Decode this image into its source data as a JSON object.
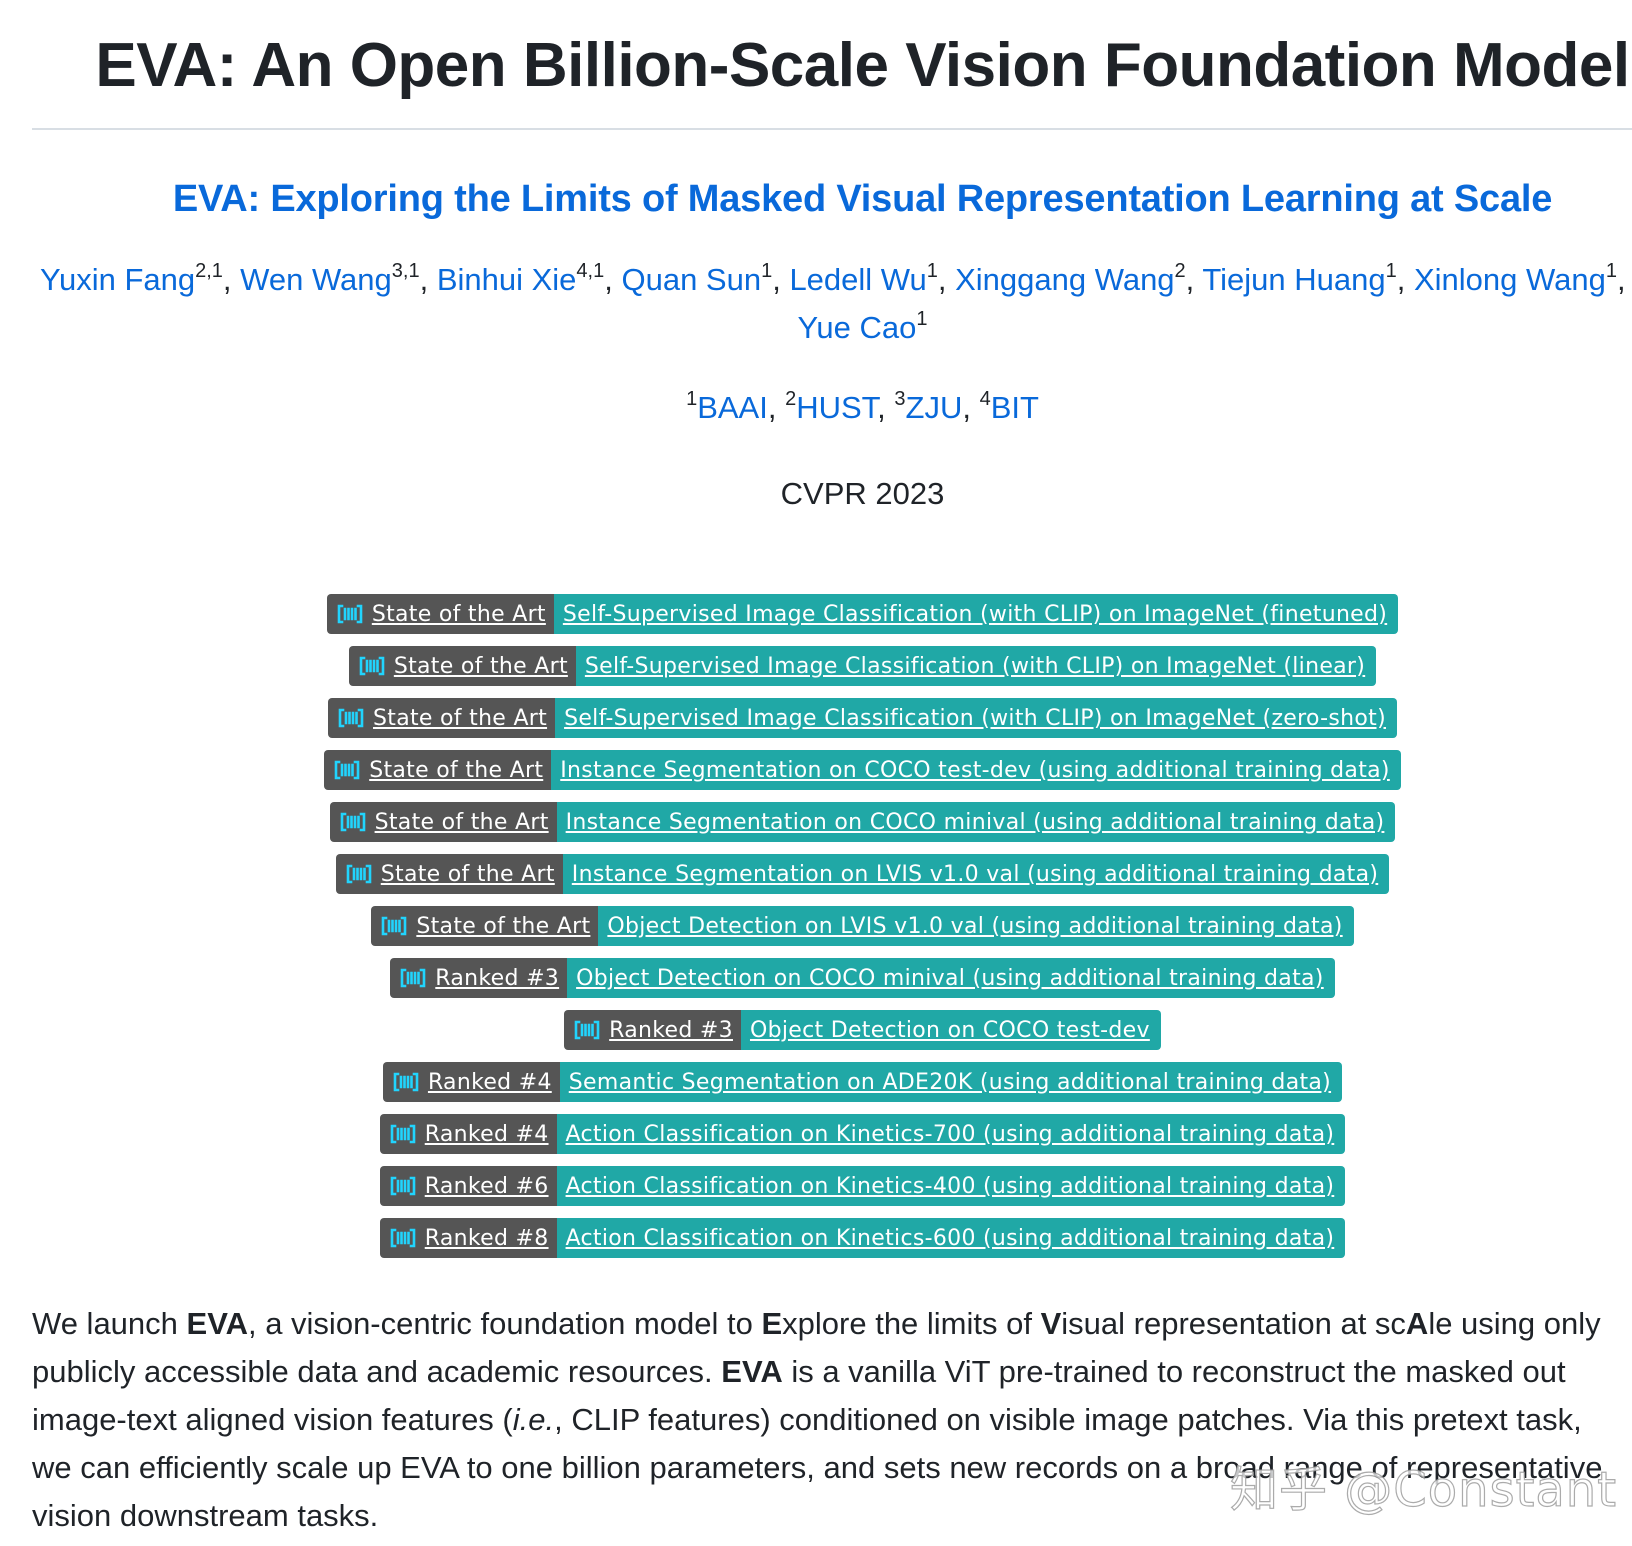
{
  "page": {
    "title": "EVA: An Open Billion-Scale Vision Foundation Model"
  },
  "paper": {
    "title": "EVA: Exploring the Limits of Masked Visual Representation Learning at Scale",
    "authors": [
      {
        "name": "Yuxin Fang",
        "sup": "2,1",
        "sep": ", "
      },
      {
        "name": "Wen Wang",
        "sup": "3,1",
        "sep": ", "
      },
      {
        "name": "Binhui Xie",
        "sup": "4,1",
        "sep": ", "
      },
      {
        "name": "Quan Sun",
        "sup": "1",
        "sep": ", "
      },
      {
        "name": "Ledell Wu",
        "sup": "1",
        "sep": ", "
      },
      {
        "name": "Xinggang Wang",
        "sup": "2",
        "sep": ", "
      },
      {
        "name": "Tiejun Huang",
        "sup": "1",
        "sep": ", "
      },
      {
        "name": "Xinlong Wang",
        "sup": "1",
        "sep": ", "
      }
    ],
    "last_author": {
      "name": "Yue Cao",
      "sup": "1"
    },
    "affiliations": [
      {
        "sup": "1",
        "name": "BAAI",
        "sep": ", "
      },
      {
        "sup": "2",
        "name": "HUST",
        "sep": ", "
      },
      {
        "sup": "3",
        "name": "ZJU",
        "sep": ", "
      },
      {
        "sup": "4",
        "name": "BIT",
        "sep": ""
      }
    ],
    "venue": "CVPR 2023"
  },
  "badges": [
    {
      "status": "State of the Art",
      "task": "Self-Supervised Image Classification (with CLIP) on ImageNet (finetuned)"
    },
    {
      "status": "State of the Art",
      "task": "Self-Supervised Image Classification (with CLIP) on ImageNet (linear)"
    },
    {
      "status": "State of the Art",
      "task": "Self-Supervised Image Classification (with CLIP) on ImageNet (zero-shot)"
    },
    {
      "status": "State of the Art",
      "task": "Instance Segmentation on COCO test-dev (using additional training data)"
    },
    {
      "status": "State of the Art",
      "task": "Instance Segmentation on COCO minival (using additional training data)"
    },
    {
      "status": "State of the Art",
      "task": "Instance Segmentation on LVIS v1.0 val (using additional training data)"
    },
    {
      "status": "State of the Art",
      "task": "Object Detection on LVIS v1.0 val (using additional training data)"
    },
    {
      "status": "Ranked #3",
      "task": "Object Detection on COCO minival (using additional training data)"
    },
    {
      "status": "Ranked #3",
      "task": "Object Detection on COCO test-dev"
    },
    {
      "status": "Ranked #4",
      "task": "Semantic Segmentation on ADE20K (using additional training data)"
    },
    {
      "status": "Ranked #4",
      "task": "Action Classification on Kinetics-700 (using additional training data)"
    },
    {
      "status": "Ranked #6",
      "task": "Action Classification on Kinetics-400 (using additional training data)"
    },
    {
      "status": "Ranked #8",
      "task": "Action Classification on Kinetics-600 (using additional training data)"
    }
  ],
  "abstract": {
    "lines": [
      [
        {
          "t": "We launch "
        },
        {
          "t": "EVA",
          "b": true
        },
        {
          "t": ", a vision-centric foundation model to "
        },
        {
          "t": "E",
          "b": true
        },
        {
          "t": "xplore the limits of "
        },
        {
          "t": "V",
          "b": true
        },
        {
          "t": "isual representation at sc"
        },
        {
          "t": "A",
          "b": true
        },
        {
          "t": "le using only"
        }
      ],
      [
        {
          "t": "publicly accessible data and academic resources. "
        },
        {
          "t": "EVA",
          "b": true
        },
        {
          "t": " is a vanilla ViT pre-trained to reconstruct the masked out"
        }
      ],
      [
        {
          "t": "image-text aligned vision features ("
        },
        {
          "t": "i.e.",
          "i": true
        },
        {
          "t": ", CLIP features) conditioned on visible image patches. Via this pretext task,"
        }
      ],
      [
        {
          "t": "we can efficiently scale up EVA to one billion parameters, and sets new records on a broad range of representative"
        }
      ],
      [
        {
          "t": "vision downstream tasks."
        }
      ]
    ]
  },
  "watermark": "知乎 @Constant",
  "colors": {
    "link": "#0969da",
    "badge_left": "#555555",
    "badge_right": "#20a8a6",
    "badge_icon": "#21d4fd",
    "rule": "#d8dee4"
  }
}
